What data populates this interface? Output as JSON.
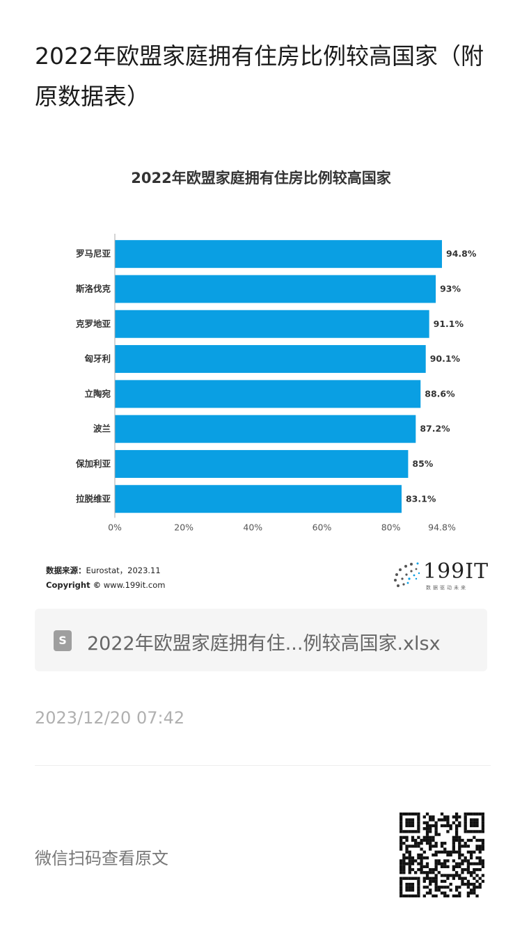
{
  "article": {
    "title": "2022年欧盟家庭拥有住房比例较高国家（附原数据表）"
  },
  "chart_data": {
    "type": "bar",
    "orientation": "horizontal",
    "title": "2022年欧盟家庭拥有住房比例较高国家",
    "categories": [
      "罗马尼亚",
      "斯洛伐克",
      "克罗地亚",
      "匈牙利",
      "立陶宛",
      "波兰",
      "保加利亚",
      "拉脱维亚"
    ],
    "values": [
      94.8,
      93,
      91.1,
      90.1,
      88.6,
      87.2,
      85,
      83.1
    ],
    "value_labels": [
      "94.8%",
      "93%",
      "91.1%",
      "90.1%",
      "88.6%",
      "87.2%",
      "85%",
      "83.1%"
    ],
    "xlim": [
      0,
      94.8
    ],
    "x_ticks": [
      0,
      20,
      40,
      60,
      80,
      94.8
    ],
    "x_tick_labels": [
      "0%",
      "20%",
      "40%",
      "60%",
      "80%",
      "94.8%"
    ],
    "bar_color": "#0a9fe3",
    "grid": false
  },
  "source": {
    "label": "数据来源：",
    "text": "Eurostat，2023.11",
    "copyright_label": "Copyright ©",
    "copyright_site": "www.199it.com"
  },
  "logo": {
    "text": "199IT",
    "tagline": "数据驱动未来"
  },
  "file": {
    "icon": "spreadsheet-file-icon",
    "icon_glyph": "S",
    "name": "2022年欧盟家庭拥有住...例较高国家.xlsx"
  },
  "meta": {
    "timestamp": "2023/12/20 07:42"
  },
  "footer": {
    "scan_text": "微信扫码查看原文"
  },
  "colors": {
    "accent": "#0a9fe3",
    "card_bg": "#f5f5f5",
    "muted": "#b0b0b0"
  }
}
